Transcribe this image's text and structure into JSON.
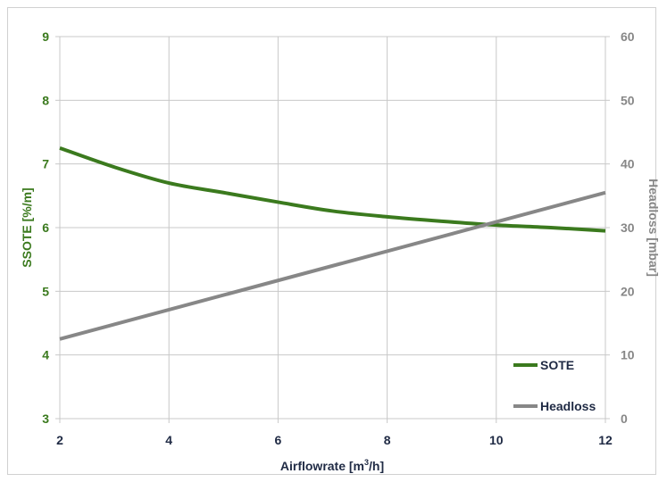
{
  "colors": {
    "sote": "#3b7a1e",
    "headloss": "#878787",
    "grid": "#c8c8c8",
    "axis_text_dark": "#1f2a44",
    "background": "#ffffff"
  },
  "chart_data": {
    "type": "line",
    "xlabel": "Airflowrate [m³/h]",
    "xlabel_main": "Airflowrate [m",
    "xlabel_sup": "3",
    "xlabel_tail": "/h]",
    "ylabel": "SSOTE [%/m]",
    "y2label": "Headloss [mbar]",
    "xlim": [
      2,
      12
    ],
    "ylim": [
      3,
      9
    ],
    "y2lim": [
      0,
      60
    ],
    "x_ticks": [
      "2",
      "4",
      "6",
      "8",
      "10",
      "12"
    ],
    "y_ticks": [
      "3",
      "4",
      "5",
      "6",
      "7",
      "8",
      "9"
    ],
    "y2_ticks": [
      "0",
      "10",
      "20",
      "30",
      "40",
      "50",
      "60"
    ],
    "grid": true,
    "legend_position": "bottom-right",
    "series": [
      {
        "name": "SOTE",
        "axis": "left",
        "x": [
          2,
          3,
          4,
          5,
          6,
          7,
          8,
          9,
          10,
          11,
          12
        ],
        "values": [
          7.25,
          6.95,
          6.7,
          6.55,
          6.4,
          6.26,
          6.17,
          6.1,
          6.04,
          6.0,
          5.95
        ]
      },
      {
        "name": "Headloss",
        "axis": "right",
        "x": [
          2,
          12
        ],
        "values": [
          12.5,
          35.5
        ]
      }
    ]
  }
}
